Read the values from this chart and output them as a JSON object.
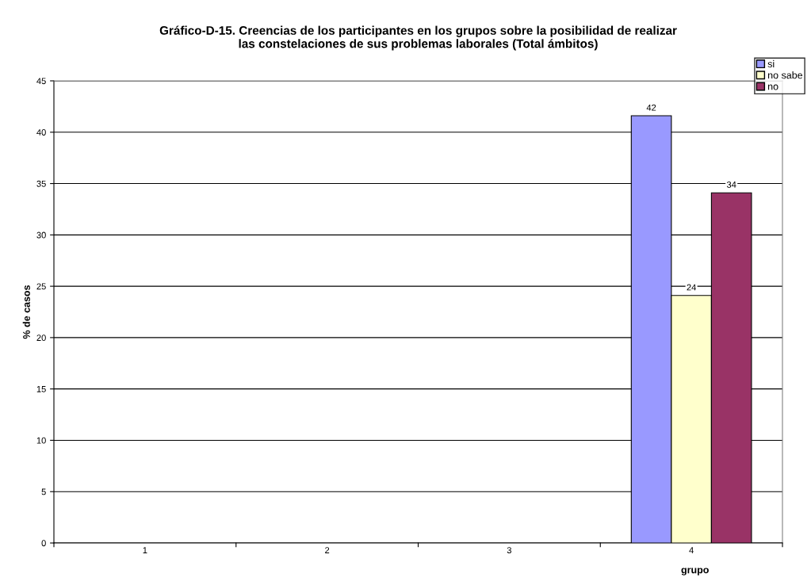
{
  "chart_data": {
    "type": "bar",
    "title": "Gráfico-D-15. Creencias de los participantes en los grupos sobre la posibilidad de realizar\nlas constelaciones de sus problemas laborales (Total ámbitos)",
    "xlabel": "grupo",
    "ylabel": "% de casos",
    "categories": [
      "1",
      "2",
      "3",
      "4"
    ],
    "series": [
      {
        "name": "si",
        "color": "#9999ff",
        "values": [
          null,
          null,
          null,
          41.6
        ],
        "value_labels": [
          null,
          null,
          null,
          "42"
        ]
      },
      {
        "name": "no sabe",
        "color": "#ffffcc",
        "values": [
          null,
          null,
          null,
          24.1
        ],
        "value_labels": [
          null,
          null,
          null,
          "24"
        ]
      },
      {
        "name": "no",
        "color": "#993366",
        "values": [
          null,
          null,
          null,
          34.1
        ],
        "value_labels": [
          null,
          null,
          null,
          "34"
        ]
      }
    ],
    "ylim": [
      0,
      45
    ],
    "yticks": [
      0,
      5,
      10,
      15,
      20,
      25,
      30,
      35,
      40,
      45
    ],
    "grid": "y",
    "legend": "top right"
  }
}
